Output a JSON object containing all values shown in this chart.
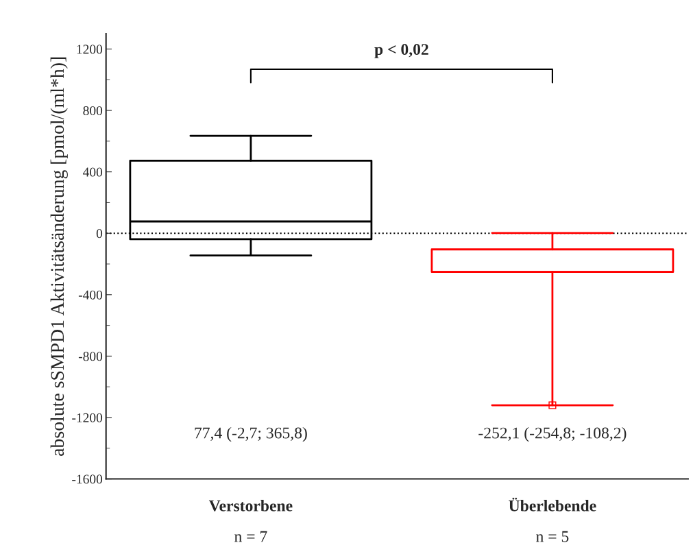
{
  "chart_data": {
    "type": "box",
    "ylabel": "absolute sSMPD1 Aktivitätsänderung [pmol/(ml*h)]",
    "categories": [
      "Verstorbene",
      "Überlebende"
    ],
    "boxes": [
      {
        "low": -145,
        "q1": -39,
        "median": 77,
        "q3": 473,
        "high": 635
      },
      {
        "low": -1120,
        "q1": -252,
        "median": -252,
        "q3": -105,
        "high": 2,
        "outliers": [
          -1120
        ]
      }
    ],
    "colors": [
      "#000000",
      "#ff0000"
    ],
    "ylim": [
      -1600,
      1300
    ],
    "yticks": [
      -1600,
      -1200,
      -800,
      -400,
      0,
      400,
      800,
      1200
    ],
    "ref_lines": [
      {
        "axis": "y",
        "value": 0,
        "line_style": "dotted",
        "color": "#000000"
      }
    ],
    "annotations": [
      "p < 0,02",
      "77,4 (-2,7; 365,8)",
      "-252,1 (-254,8; -108,2)",
      "n = 7",
      "n = 5"
    ],
    "grid": false,
    "legend": false
  }
}
